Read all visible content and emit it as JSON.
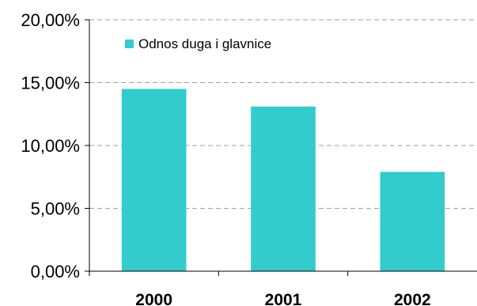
{
  "chart_data": {
    "type": "bar",
    "categories": [
      "2000",
      "2001",
      "2002"
    ],
    "series": [
      {
        "name": "Odnos duga i glavnice",
        "values": [
          14.5,
          13.1,
          7.9
        ],
        "color": "#33CCCC"
      }
    ],
    "y_ticks": [
      "0,00%",
      "5,00%",
      "10,00%",
      "15,00%",
      "20,00%"
    ],
    "ylim": [
      0,
      20
    ],
    "y_tick_step": 5,
    "grid": true,
    "grid_style": "dashed",
    "legend_position": "top-left",
    "xlabel": "",
    "ylabel": "",
    "title": ""
  }
}
